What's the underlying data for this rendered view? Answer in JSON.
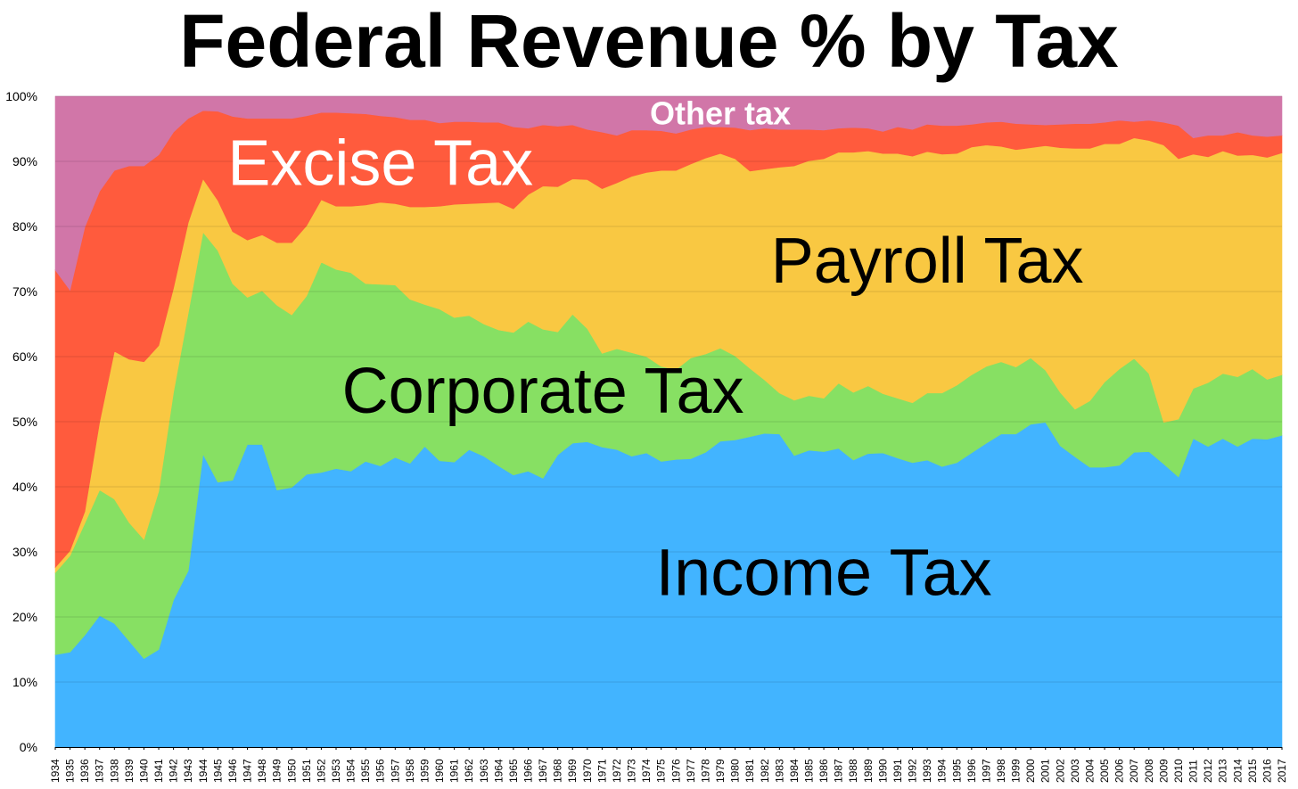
{
  "chart_data": {
    "type": "area",
    "title": "Federal Revenue % by Tax",
    "xlabel": "",
    "ylabel": "",
    "ylim": [
      0,
      100
    ],
    "y_ticks": [
      "0%",
      "10%",
      "20%",
      "30%",
      "40%",
      "50%",
      "60%",
      "70%",
      "80%",
      "90%",
      "100%"
    ],
    "x_tick_labels": [
      "1934",
      "1935",
      "1936",
      "1937",
      "1938",
      "1939",
      "1940",
      "1941",
      "1942",
      "1943",
      "1944",
      "1945",
      "1946",
      "1947",
      "1948",
      "1949",
      "1950",
      "1951",
      "1952",
      "1953",
      "1954",
      "1955",
      "1956",
      "1957",
      "1958",
      "1959",
      "1960",
      "1961",
      "1962",
      "1963",
      "1964",
      "1965",
      "1966",
      "1967",
      "1968",
      "1969",
      "1970",
      "1971",
      "1972",
      "1973",
      "1974",
      "1975",
      "1976",
      "1977",
      "1978",
      "1979",
      "1980",
      "1981",
      "1982",
      "1983",
      "1984",
      "1985",
      "1986",
      "1987",
      "1988",
      "1989",
      "1990",
      "1991",
      "1992",
      "1993",
      "1994",
      "1995",
      "1996",
      "1997",
      "1998",
      "1999",
      "2000",
      "2001",
      "2002",
      "2003",
      "2004",
      "2005",
      "2006",
      "2007",
      "2008",
      "2009",
      "2010",
      "2011",
      "2012",
      "2013",
      "2014",
      "2015",
      "2016",
      "2017"
    ],
    "x": [
      1934,
      1935,
      1936,
      1937,
      1938,
      1939,
      1940,
      1941,
      1942,
      1943,
      1944,
      1945,
      1946,
      1947,
      1948,
      1949,
      1950,
      1951,
      1952,
      1953,
      1954,
      1955,
      1956,
      1957,
      1958,
      1959,
      1960,
      1961,
      1962,
      1963,
      1964,
      1965,
      1966,
      1967,
      1968,
      1969,
      1970,
      1971,
      1972,
      1973,
      1974,
      1975,
      1976,
      1977,
      1978,
      1979,
      1980,
      1981,
      1982,
      1983,
      1984,
      1985,
      1986,
      1987,
      1988,
      1989,
      1990,
      1991,
      1992,
      1993,
      1994,
      1995,
      1996,
      1997,
      1998,
      1999,
      2000,
      2001,
      2002,
      2003,
      2004,
      2005,
      2006,
      2007,
      2008,
      2009,
      2010,
      2011,
      2012,
      2013,
      2014,
      2015,
      2016,
      2017
    ],
    "stacking": "cumulative_percent",
    "series": [
      {
        "name": "Income Tax",
        "color": "#42b4ff",
        "cumulative_top": [
          14.2,
          14.6,
          17.2,
          20.2,
          19,
          16.3,
          13.6,
          15,
          22.6,
          27.1,
          45,
          40.7,
          41,
          46.5,
          46.5,
          39.5,
          39.9,
          41.9,
          42.2,
          42.8,
          42.4,
          43.9,
          43.2,
          44.5,
          43.6,
          46.2,
          44,
          43.8,
          45.7,
          44.7,
          43.2,
          41.8,
          42.4,
          41.3,
          44.9,
          46.7,
          46.9,
          46.1,
          45.7,
          44.7,
          45.2,
          43.9,
          44.2,
          44.3,
          45.3,
          47,
          47.2,
          47.7,
          48.2,
          48.1,
          44.8,
          45.6,
          45.4,
          45.9,
          44.1,
          45.1,
          45.2,
          44.4,
          43.7,
          44.1,
          43.1,
          43.7,
          45.2,
          46.7,
          48.1,
          48.1,
          49.6,
          49.9,
          46.3,
          44.6,
          43,
          43,
          43.3,
          45.3,
          45.4,
          43.5,
          41.5,
          47.4,
          46.2,
          47.4,
          46.2,
          47.4,
          47.3,
          47.9
        ]
      },
      {
        "name": "Corporate Tax",
        "color": "#87e063",
        "cumulative_top": [
          26.8,
          29.4,
          34.4,
          39.5,
          38.1,
          34.5,
          31.9,
          39.3,
          54.5,
          66.7,
          79.1,
          76.3,
          71.2,
          69.1,
          70.1,
          67.9,
          66.4,
          69.3,
          74.5,
          73.4,
          72.9,
          71.2,
          71.1,
          71,
          68.8,
          68,
          67.3,
          66,
          66.3,
          65,
          64.1,
          63.7,
          65.4,
          64.2,
          63.8,
          66.5,
          64.3,
          60.5,
          61.2,
          60.6,
          60,
          58.5,
          58,
          59.8,
          60.4,
          61.3,
          60.1,
          58.2,
          56.4,
          54.4,
          53.3,
          54,
          53.6,
          55.9,
          54.5,
          55.5,
          54.3,
          53.6,
          52.9,
          54.4,
          54.4,
          55.6,
          57.2,
          58.5,
          59.2,
          58.4,
          59.8,
          57.9,
          54.5,
          51.9,
          53.2,
          56.1,
          58.1,
          59.7,
          57.4,
          49.9,
          50.4,
          55.1,
          56,
          57.4,
          56.9,
          58.1,
          56.5,
          57.2
        ]
      },
      {
        "name": "Payroll Tax",
        "color": "#f9c842",
        "cumulative_top": [
          27.6,
          30.2,
          36.2,
          49.9,
          60.8,
          59.6,
          59.2,
          61.7,
          70.5,
          80.6,
          87.3,
          84,
          79.2,
          77.9,
          78.7,
          77.5,
          77.5,
          80.1,
          84.1,
          83.1,
          83.1,
          83.3,
          83.7,
          83.5,
          83,
          83,
          83.1,
          83.4,
          83.5,
          83.6,
          83.7,
          82.7,
          84.9,
          86.2,
          86.1,
          87.3,
          87.2,
          85.8,
          86.7,
          87.7,
          88.3,
          88.6,
          88.6,
          89.6,
          90.5,
          91.2,
          90.4,
          88.5,
          88.8,
          89.1,
          89.3,
          90.1,
          90.4,
          91.4,
          91.4,
          91.6,
          91.2,
          91.2,
          90.8,
          91.5,
          91.1,
          91.2,
          92.2,
          92.5,
          92.3,
          91.8,
          92.1,
          92.4,
          92.1,
          92,
          92,
          92.7,
          92.7,
          93.6,
          93.2,
          92.5,
          90.4,
          91.1,
          90.7,
          91.6,
          90.9,
          91,
          90.6,
          91.3
        ]
      },
      {
        "name": "Excise Tax",
        "color": "#ff5b3d",
        "cumulative_top": [
          73.3,
          70.2,
          79.9,
          85.4,
          88.6,
          89.3,
          89.3,
          91,
          94.5,
          96.6,
          97.8,
          97.7,
          96.9,
          96.6,
          96.6,
          96.6,
          96.6,
          97,
          97.5,
          97.5,
          97.4,
          97.3,
          97,
          96.8,
          96.4,
          96.4,
          95.9,
          96.1,
          96.1,
          96,
          96,
          95.3,
          95.1,
          95.6,
          95.4,
          95.6,
          94.9,
          94.5,
          94,
          94.8,
          94.8,
          94.7,
          94.3,
          94.9,
          95.3,
          95.3,
          95.2,
          94.8,
          95.1,
          94.9,
          94.9,
          94.9,
          94.8,
          95.1,
          95.2,
          95.1,
          94.6,
          95.3,
          94.9,
          95.7,
          95.5,
          95.5,
          95.7,
          96,
          96.1,
          95.8,
          95.7,
          95.6,
          95.7,
          95.8,
          95.8,
          96,
          96.3,
          96.1,
          96.3,
          96,
          95.5,
          93.6,
          94,
          94,
          94.5,
          94,
          93.8,
          94
        ]
      },
      {
        "name": "Other tax",
        "color": "#d176a8",
        "cumulative_top": [
          100,
          100,
          100,
          100,
          100,
          100,
          100,
          100,
          100,
          100,
          100,
          100,
          100,
          100,
          100,
          100,
          100,
          100,
          100,
          100,
          100,
          100,
          100,
          100,
          100,
          100,
          100,
          100,
          100,
          100,
          100,
          100,
          100,
          100,
          100,
          100,
          100,
          100,
          100,
          100,
          100,
          100,
          100,
          100,
          100,
          100,
          100,
          100,
          100,
          100,
          100,
          100,
          100,
          100,
          100,
          100,
          100,
          100,
          100,
          100,
          100,
          100,
          100,
          100,
          100,
          100,
          100,
          100,
          100,
          100,
          100,
          100,
          100,
          100,
          100,
          100,
          100,
          100,
          100,
          100,
          100,
          100,
          100,
          100
        ]
      }
    ],
    "annotations": [
      {
        "text": "Income Tax",
        "series": "Income Tax",
        "anchor_x": 1986,
        "anchor_y": 26,
        "color": "#000000",
        "weight": "normal"
      },
      {
        "text": "Corporate Tax",
        "series": "Corporate Tax",
        "anchor_x": 1967,
        "anchor_y": 54,
        "color": "#000000",
        "weight": "normal"
      },
      {
        "text": "Payroll Tax",
        "series": "Payroll Tax",
        "anchor_x": 1993,
        "anchor_y": 74,
        "color": "#000000",
        "weight": "normal"
      },
      {
        "text": "Excise Tax",
        "series": "Excise Tax",
        "anchor_x": 1956,
        "anchor_y": 89,
        "color": "#ffffff",
        "weight": "normal"
      },
      {
        "text": "Other tax",
        "series": "Other tax",
        "anchor_x": 1979,
        "anchor_y": 97,
        "color": "#ffffff",
        "weight": "bold"
      }
    ],
    "grid": true,
    "legend": "none"
  }
}
